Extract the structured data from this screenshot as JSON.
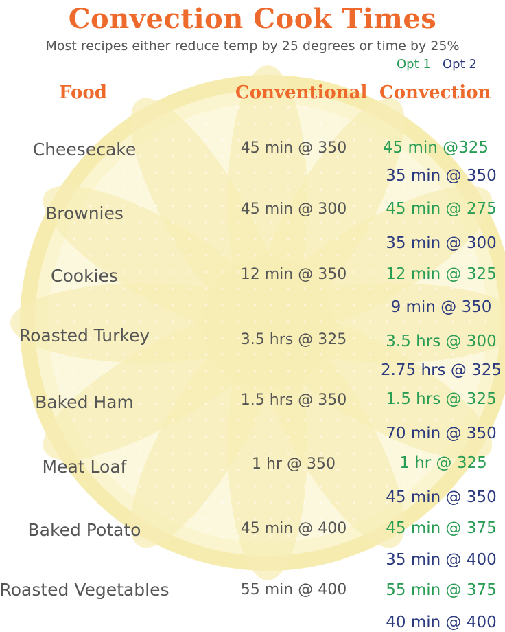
{
  "title": "Convection Cook Times",
  "subtitle": "Most recipes either reduce temp by 25 degrees or time by 25%",
  "options": {
    "opt1": "Opt 1",
    "opt2": "Opt 2"
  },
  "headers": {
    "food": "Food",
    "conventional": "Conventional",
    "convection": "Convection"
  },
  "rows": [
    {
      "food": "Cheesecake",
      "conventional": "45 min @ 350",
      "opt1": "45 min @325",
      "opt2": "35 min @ 350"
    },
    {
      "food": "Brownies",
      "conventional": "45 min @ 300",
      "opt1": "45 min @ 275",
      "opt2": "35 min @ 300"
    },
    {
      "food": "Cookies",
      "conventional": "12 min @ 350",
      "opt1": "12 min @ 325",
      "opt2": "9 min @ 350"
    },
    {
      "food": "Roasted Turkey",
      "conventional": "3.5 hrs @ 325",
      "opt1": "3.5 hrs @ 300",
      "opt2": "2.75 hrs @ 325"
    },
    {
      "food": "Baked Ham",
      "conventional": "1.5 hrs @ 350",
      "opt1": "1.5 hrs @ 325",
      "opt2": "70 min @ 350"
    },
    {
      "food": "Meat Loaf",
      "conventional": "1 hr @ 350",
      "opt1": "1 hr @ 325",
      "opt2": "45 min @ 350"
    },
    {
      "food": "Baked Potato",
      "conventional": "45 min @ 400",
      "opt1": "45 min @ 375",
      "opt2": "35 min @ 400"
    },
    {
      "food": "Roasted Vegetables",
      "conventional": "55 min @ 400",
      "opt1": "55 min @ 375",
      "opt2": "40 min @ 400"
    }
  ],
  "colors": {
    "title": "#ee6a2c",
    "header": "#ee6a2c",
    "text": "#555555",
    "opt1": "#2a9d55",
    "opt2": "#2c3a7e",
    "background_circle": "#fbf4c4"
  }
}
